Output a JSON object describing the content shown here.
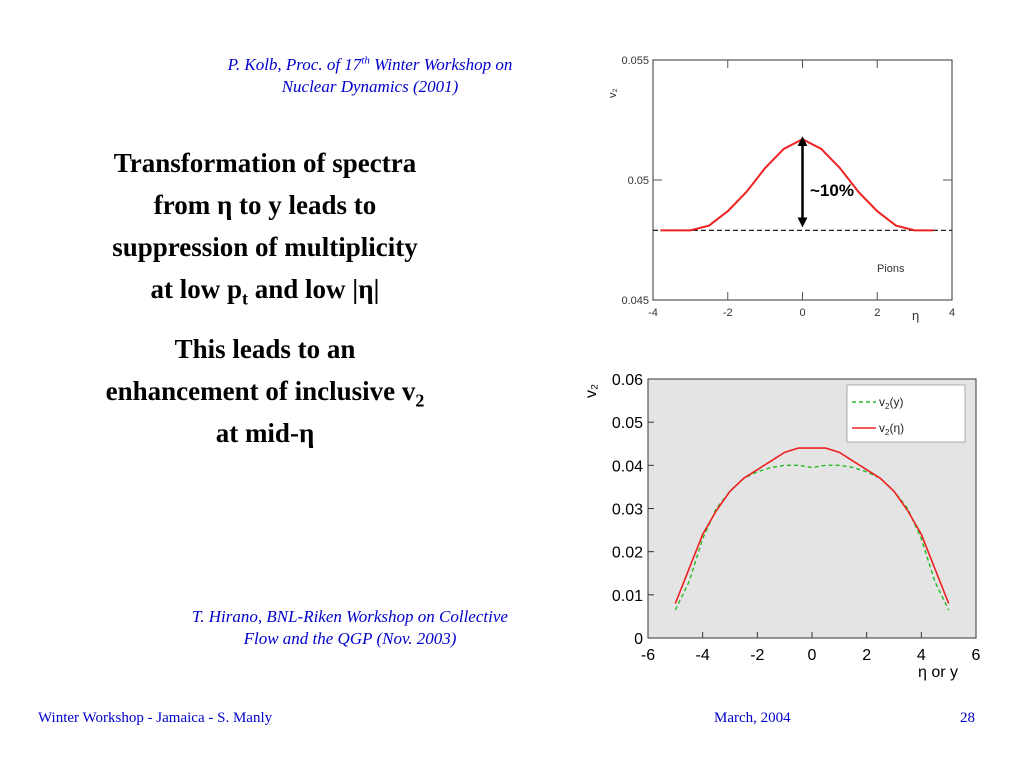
{
  "citations": {
    "top": {
      "line1_pre": "P. Kolb, Proc. of 17",
      "line1_sup": "th",
      "line1_post": " Winter Workshop on",
      "line2": "Nuclear Dynamics (2001)"
    },
    "bottom": {
      "line1": "T. Hirano, BNL-Riken Workshop on Collective",
      "line2": "Flow and the QGP (Nov. 2003)"
    }
  },
  "body": {
    "para1": {
      "line1": "Transformation of spectra",
      "line2": "from η to y leads to",
      "line3": "suppression of multiplicity",
      "line4_pre": "at low p",
      "line4_sub": "t",
      "line4_post": " and low |η|"
    },
    "para2": {
      "line1": "This leads to an",
      "line2_pre": "enhancement of inclusive v",
      "line2_sub": "2",
      "line3": "at mid-η"
    }
  },
  "footer": {
    "left": "Winter Workshop - Jamaica - S. Manly",
    "center": "March, 2004",
    "page": "28"
  },
  "colors": {
    "citation": "#0000cc",
    "footer": "#0000cc",
    "curve": "#ee2222",
    "green": "#22bb22",
    "plot_bg": "#e4e4e4"
  },
  "chart_data": [
    {
      "type": "line",
      "title": "",
      "xlabel": "η",
      "ylabel": "v₂",
      "xlim": [
        -4,
        4
      ],
      "ylim": [
        0.045,
        0.055
      ],
      "x_ticks": [
        "-4",
        "-2",
        "0",
        "2",
        "4"
      ],
      "y_ticks": [
        "0.045",
        "0.05",
        "0.055"
      ],
      "annotation": "~10%",
      "label": "Pions",
      "baseline": 0.0479,
      "series": [
        {
          "name": "",
          "x": [
            -3.8,
            -3.0,
            -2.5,
            -2.0,
            -1.5,
            -1.0,
            -0.5,
            0.0,
            0.5,
            1.0,
            1.5,
            2.0,
            2.5,
            3.0,
            3.5
          ],
          "y": [
            0.0479,
            0.0479,
            0.0481,
            0.0487,
            0.0495,
            0.0505,
            0.0513,
            0.0517,
            0.0513,
            0.0505,
            0.0495,
            0.0487,
            0.0481,
            0.0479,
            0.0479
          ]
        }
      ]
    },
    {
      "type": "line",
      "title": "",
      "xlabel": "η or y",
      "ylabel": "v₂",
      "xlim": [
        -6,
        6
      ],
      "ylim": [
        0,
        0.06
      ],
      "x_ticks": [
        "-6",
        "-4",
        "-2",
        "0",
        "2",
        "4",
        "6"
      ],
      "y_ticks": [
        "0",
        "0.01",
        "0.02",
        "0.03",
        "0.04",
        "0.05",
        "0.06"
      ],
      "legend": "top-right",
      "series": [
        {
          "name_base": "v",
          "name_sub": "2",
          "name_arg": "(y)",
          "x": [
            -5,
            -4.5,
            -4,
            -3.5,
            -3,
            -2.5,
            -2,
            -1.5,
            -1,
            -0.5,
            0,
            0.5,
            1,
            1.5,
            2,
            2.5,
            3,
            3.5,
            4,
            4.5,
            5
          ],
          "y": [
            0.0065,
            0.013,
            0.023,
            0.03,
            0.034,
            0.037,
            0.0385,
            0.0395,
            0.04,
            0.04,
            0.0395,
            0.04,
            0.04,
            0.0395,
            0.0385,
            0.037,
            0.034,
            0.03,
            0.023,
            0.013,
            0.0065
          ]
        },
        {
          "name_base": "v",
          "name_sub": "2",
          "name_arg": "(η)",
          "x": [
            -5,
            -4.5,
            -4,
            -3.5,
            -3,
            -2.5,
            -2,
            -1.5,
            -1,
            -0.5,
            0,
            0.5,
            1,
            1.5,
            2,
            2.5,
            3,
            3.5,
            4,
            4.5,
            5
          ],
          "y": [
            0.008,
            0.016,
            0.024,
            0.0295,
            0.034,
            0.037,
            0.039,
            0.041,
            0.043,
            0.044,
            0.044,
            0.044,
            0.043,
            0.041,
            0.039,
            0.037,
            0.034,
            0.0295,
            0.024,
            0.016,
            0.008
          ]
        }
      ]
    }
  ]
}
